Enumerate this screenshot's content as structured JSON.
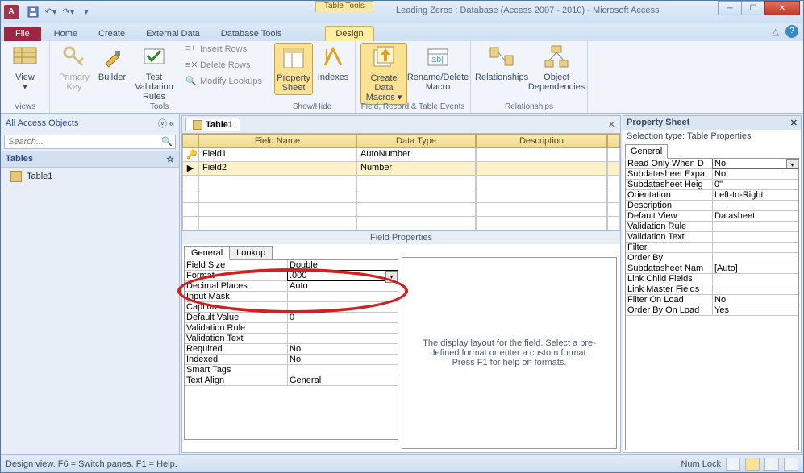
{
  "titlebar": {
    "doc_title": "Leading Zeros : Database (Access 2007 - 2010) - Microsoft Access",
    "tab_tools": "Table Tools"
  },
  "ribbon_tabs": {
    "file": "File",
    "home": "Home",
    "create": "Create",
    "external_data": "External Data",
    "db_tools": "Database Tools",
    "design": "Design"
  },
  "ribbon": {
    "views": {
      "view": "View",
      "group": "Views"
    },
    "tools": {
      "primary_key": "Primary Key",
      "builder": "Builder",
      "test_rules": "Test Validation Rules",
      "insert_rows": "Insert Rows",
      "delete_rows": "Delete Rows",
      "modify_lookups": "Modify Lookups",
      "group": "Tools"
    },
    "showhide": {
      "property_sheet": "Property Sheet",
      "indexes": "Indexes",
      "group": "Show/Hide"
    },
    "events": {
      "create_macros": "Create Data Macros ▾",
      "rename_delete": "Rename/Delete Macro",
      "group": "Field, Record & Table Events"
    },
    "relationships": {
      "relationships": "Relationships",
      "obj_dep": "Object Dependencies",
      "group": "Relationships"
    }
  },
  "nav": {
    "header": "All Access Objects",
    "search_placeholder": "Search...",
    "tables": "Tables",
    "item1": "Table1"
  },
  "doc_tab": {
    "name": "Table1"
  },
  "field_grid": {
    "headers": {
      "name": "Field Name",
      "type": "Data Type",
      "desc": "Description"
    },
    "rows": [
      {
        "name": "Field1",
        "type": "AutoNumber",
        "desc": ""
      },
      {
        "name": "Field2",
        "type": "Number",
        "desc": ""
      }
    ]
  },
  "field_props": {
    "title": "Field Properties",
    "tabs": {
      "general": "General",
      "lookup": "Lookup"
    },
    "rows": [
      {
        "k": "Field Size",
        "v": "Double"
      },
      {
        "k": "Format",
        "v": ".000",
        "sel": true
      },
      {
        "k": "Decimal Places",
        "v": "Auto"
      },
      {
        "k": "Input Mask",
        "v": ""
      },
      {
        "k": "Caption",
        "v": ""
      },
      {
        "k": "Default Value",
        "v": "0"
      },
      {
        "k": "Validation Rule",
        "v": ""
      },
      {
        "k": "Validation Text",
        "v": ""
      },
      {
        "k": "Required",
        "v": "No"
      },
      {
        "k": "Indexed",
        "v": "No"
      },
      {
        "k": "Smart Tags",
        "v": ""
      },
      {
        "k": "Text Align",
        "v": "General"
      }
    ],
    "help": "The display layout for the field. Select a pre-defined format or enter a custom format. Press F1 for help on formats."
  },
  "prop_sheet": {
    "title": "Property Sheet",
    "sub": "Selection type:  Table Properties",
    "tab": "General",
    "rows": [
      {
        "k": "Read Only When D",
        "v": "No",
        "sel": true
      },
      {
        "k": "Subdatasheet Expa",
        "v": "No"
      },
      {
        "k": "Subdatasheet Heig",
        "v": "0\""
      },
      {
        "k": "Orientation",
        "v": "Left-to-Right"
      },
      {
        "k": "Description",
        "v": ""
      },
      {
        "k": "Default View",
        "v": "Datasheet"
      },
      {
        "k": "Validation Rule",
        "v": ""
      },
      {
        "k": "Validation Text",
        "v": ""
      },
      {
        "k": "Filter",
        "v": ""
      },
      {
        "k": "Order By",
        "v": ""
      },
      {
        "k": "Subdatasheet Nam",
        "v": "[Auto]"
      },
      {
        "k": "Link Child Fields",
        "v": ""
      },
      {
        "k": "Link Master Fields",
        "v": ""
      },
      {
        "k": "Filter On Load",
        "v": "No"
      },
      {
        "k": "Order By On Load",
        "v": "Yes"
      }
    ]
  },
  "statusbar": {
    "left": "Design view.  F6 = Switch panes.  F1 = Help.",
    "numlock": "Num Lock"
  }
}
